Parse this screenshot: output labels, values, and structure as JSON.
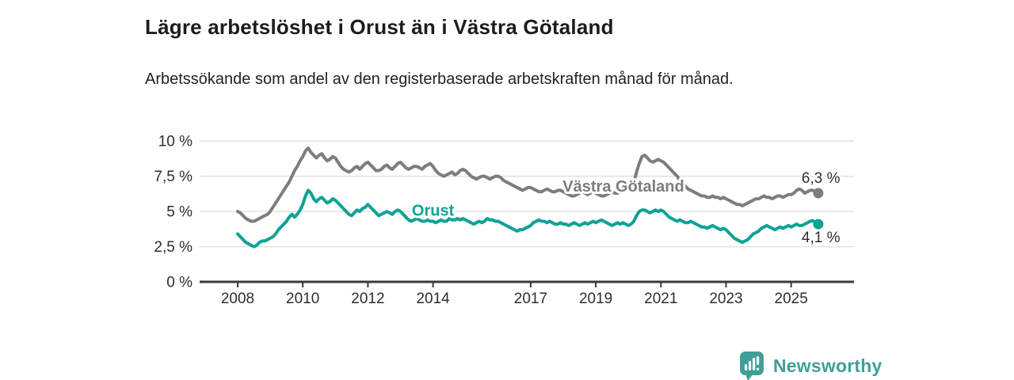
{
  "header": {
    "title": "Lägre arbetslöshet i Orust än i Västra Götaland",
    "subtitle": "Arbetssökande som andel av den registerbaserade arbetskraften månad för månad."
  },
  "footer": {
    "brand": "Newsworthy",
    "brand_color": "#3f9f98",
    "brand_icon": "bar-chart-speech-bubble"
  },
  "chart_data": {
    "type": "line",
    "title": "Lägre arbetslöshet i Orust än i Västra Götaland",
    "x_start_year": 2008,
    "points_per_year": 12,
    "x_unit": "month",
    "ylim": [
      0,
      10.5
    ],
    "grid": "horizontal",
    "grid_color": "#e2e2e2",
    "axis_color": "#3a3a3a",
    "text_color": "#2e2e2e",
    "x_ticks": {
      "years": [
        2008,
        2010,
        2012,
        2014,
        2017,
        2019,
        2021,
        2023,
        2025
      ],
      "labels": [
        "2008",
        "2010",
        "2012",
        "2014",
        "2017",
        "2019",
        "2021",
        "2023",
        "2025"
      ]
    },
    "y_ticks": {
      "values": [
        10,
        7.5,
        5,
        2.5,
        0
      ],
      "labels": [
        "10 %",
        "7,5 %",
        "5 %",
        "2,5 %",
        "0 %"
      ]
    },
    "series": [
      {
        "key": "vastra-gotaland",
        "name": "Västra Götaland",
        "color": "#7d7d7d",
        "end_label": "6,3 %",
        "end_value": 6.3,
        "end_label_position": "above",
        "label_at": {
          "year": 2019.85,
          "value": 6.8
        },
        "values": [
          5.0,
          4.9,
          4.7,
          4.5,
          4.4,
          4.3,
          4.3,
          4.4,
          4.5,
          4.6,
          4.7,
          4.8,
          5.0,
          5.3,
          5.6,
          5.9,
          6.2,
          6.5,
          6.8,
          7.1,
          7.5,
          7.9,
          8.2,
          8.6,
          8.9,
          9.3,
          9.5,
          9.2,
          9.0,
          8.8,
          9.0,
          9.1,
          8.8,
          8.6,
          8.7,
          8.9,
          8.8,
          8.5,
          8.2,
          8.0,
          7.9,
          7.8,
          7.9,
          8.1,
          8.2,
          8.0,
          8.2,
          8.4,
          8.5,
          8.3,
          8.1,
          7.9,
          7.9,
          8.0,
          8.2,
          8.3,
          8.1,
          8.0,
          8.2,
          8.4,
          8.5,
          8.3,
          8.1,
          8.0,
          8.1,
          8.2,
          8.2,
          8.1,
          8.0,
          8.2,
          8.3,
          8.4,
          8.2,
          7.9,
          7.7,
          7.6,
          7.5,
          7.6,
          7.7,
          7.8,
          7.6,
          7.7,
          7.9,
          8.0,
          7.9,
          7.7,
          7.5,
          7.4,
          7.3,
          7.4,
          7.5,
          7.5,
          7.4,
          7.3,
          7.4,
          7.5,
          7.5,
          7.4,
          7.2,
          7.1,
          7.0,
          6.9,
          6.8,
          6.7,
          6.6,
          6.5,
          6.6,
          6.7,
          6.7,
          6.6,
          6.5,
          6.4,
          6.4,
          6.5,
          6.6,
          6.5,
          6.4,
          6.4,
          6.5,
          6.5,
          6.4,
          6.3,
          6.2,
          6.1,
          6.1,
          6.2,
          6.3,
          6.4,
          6.3,
          6.2,
          6.3,
          6.4,
          6.3,
          6.2,
          6.1,
          6.1,
          6.2,
          6.3,
          6.4,
          6.3,
          6.3,
          6.4,
          6.4,
          6.5,
          6.5,
          6.6,
          7.0,
          7.8,
          8.4,
          8.9,
          9.0,
          8.8,
          8.6,
          8.5,
          8.6,
          8.7,
          8.6,
          8.5,
          8.3,
          8.1,
          7.9,
          7.7,
          7.5,
          7.2,
          7.0,
          6.8,
          6.6,
          6.5,
          6.4,
          6.3,
          6.2,
          6.1,
          6.1,
          6.0,
          6.0,
          6.1,
          6.0,
          6.0,
          5.9,
          6.0,
          5.9,
          5.8,
          5.7,
          5.6,
          5.5,
          5.5,
          5.4,
          5.5,
          5.6,
          5.7,
          5.8,
          5.9,
          5.9,
          6.0,
          6.1,
          6.0,
          6.0,
          5.9,
          6.0,
          6.1,
          6.1,
          6.0,
          6.1,
          6.2,
          6.2,
          6.3,
          6.5,
          6.6,
          6.5,
          6.3,
          6.4,
          6.5,
          6.5,
          6.4,
          6.3
        ]
      },
      {
        "key": "orust",
        "name": "Orust",
        "color": "#0fa294",
        "end_label": "4,1 %",
        "end_value": 4.1,
        "end_label_position": "below",
        "label_at": {
          "year": 2014.0,
          "value": 5.1
        },
        "values": [
          3.4,
          3.2,
          3.0,
          2.8,
          2.7,
          2.6,
          2.5,
          2.6,
          2.8,
          2.9,
          2.9,
          3.0,
          3.1,
          3.2,
          3.4,
          3.7,
          3.9,
          4.1,
          4.3,
          4.6,
          4.8,
          4.6,
          4.8,
          5.1,
          5.5,
          6.1,
          6.5,
          6.3,
          5.9,
          5.7,
          5.9,
          6.0,
          5.8,
          5.6,
          5.7,
          5.9,
          5.8,
          5.6,
          5.4,
          5.2,
          5.0,
          4.8,
          4.7,
          4.9,
          5.1,
          5.0,
          5.2,
          5.3,
          5.5,
          5.3,
          5.1,
          4.9,
          4.7,
          4.8,
          4.9,
          5.0,
          4.9,
          4.8,
          5.0,
          5.1,
          5.0,
          4.8,
          4.6,
          4.4,
          4.3,
          4.4,
          4.5,
          4.4,
          4.3,
          4.3,
          4.4,
          4.3,
          4.3,
          4.2,
          4.3,
          4.4,
          4.3,
          4.3,
          4.5,
          4.4,
          4.4,
          4.5,
          4.4,
          4.5,
          4.4,
          4.3,
          4.2,
          4.1,
          4.2,
          4.3,
          4.2,
          4.3,
          4.5,
          4.4,
          4.4,
          4.3,
          4.3,
          4.2,
          4.1,
          4.0,
          3.9,
          3.8,
          3.7,
          3.6,
          3.7,
          3.7,
          3.8,
          3.9,
          4.0,
          4.2,
          4.3,
          4.4,
          4.3,
          4.3,
          4.2,
          4.3,
          4.2,
          4.1,
          4.1,
          4.2,
          4.1,
          4.1,
          4.0,
          4.1,
          4.2,
          4.1,
          4.0,
          4.1,
          4.2,
          4.1,
          4.2,
          4.3,
          4.2,
          4.3,
          4.4,
          4.3,
          4.2,
          4.1,
          4.0,
          4.1,
          4.2,
          4.1,
          4.2,
          4.1,
          4.0,
          4.1,
          4.3,
          4.7,
          5.0,
          5.1,
          5.1,
          5.0,
          4.9,
          5.0,
          5.1,
          5.0,
          5.1,
          5.0,
          4.8,
          4.6,
          4.5,
          4.4,
          4.3,
          4.4,
          4.3,
          4.2,
          4.2,
          4.3,
          4.2,
          4.1,
          4.0,
          3.9,
          3.9,
          3.8,
          3.9,
          4.0,
          3.9,
          3.8,
          3.7,
          3.8,
          3.7,
          3.5,
          3.3,
          3.1,
          3.0,
          2.9,
          2.8,
          2.9,
          3.0,
          3.2,
          3.4,
          3.5,
          3.6,
          3.8,
          3.9,
          4.0,
          3.9,
          3.8,
          3.7,
          3.8,
          3.9,
          3.8,
          3.9,
          4.0,
          3.9,
          4.0,
          4.1,
          4.0,
          4.0,
          4.1,
          4.2,
          4.3,
          4.35,
          4.2,
          4.1
        ]
      }
    ]
  }
}
